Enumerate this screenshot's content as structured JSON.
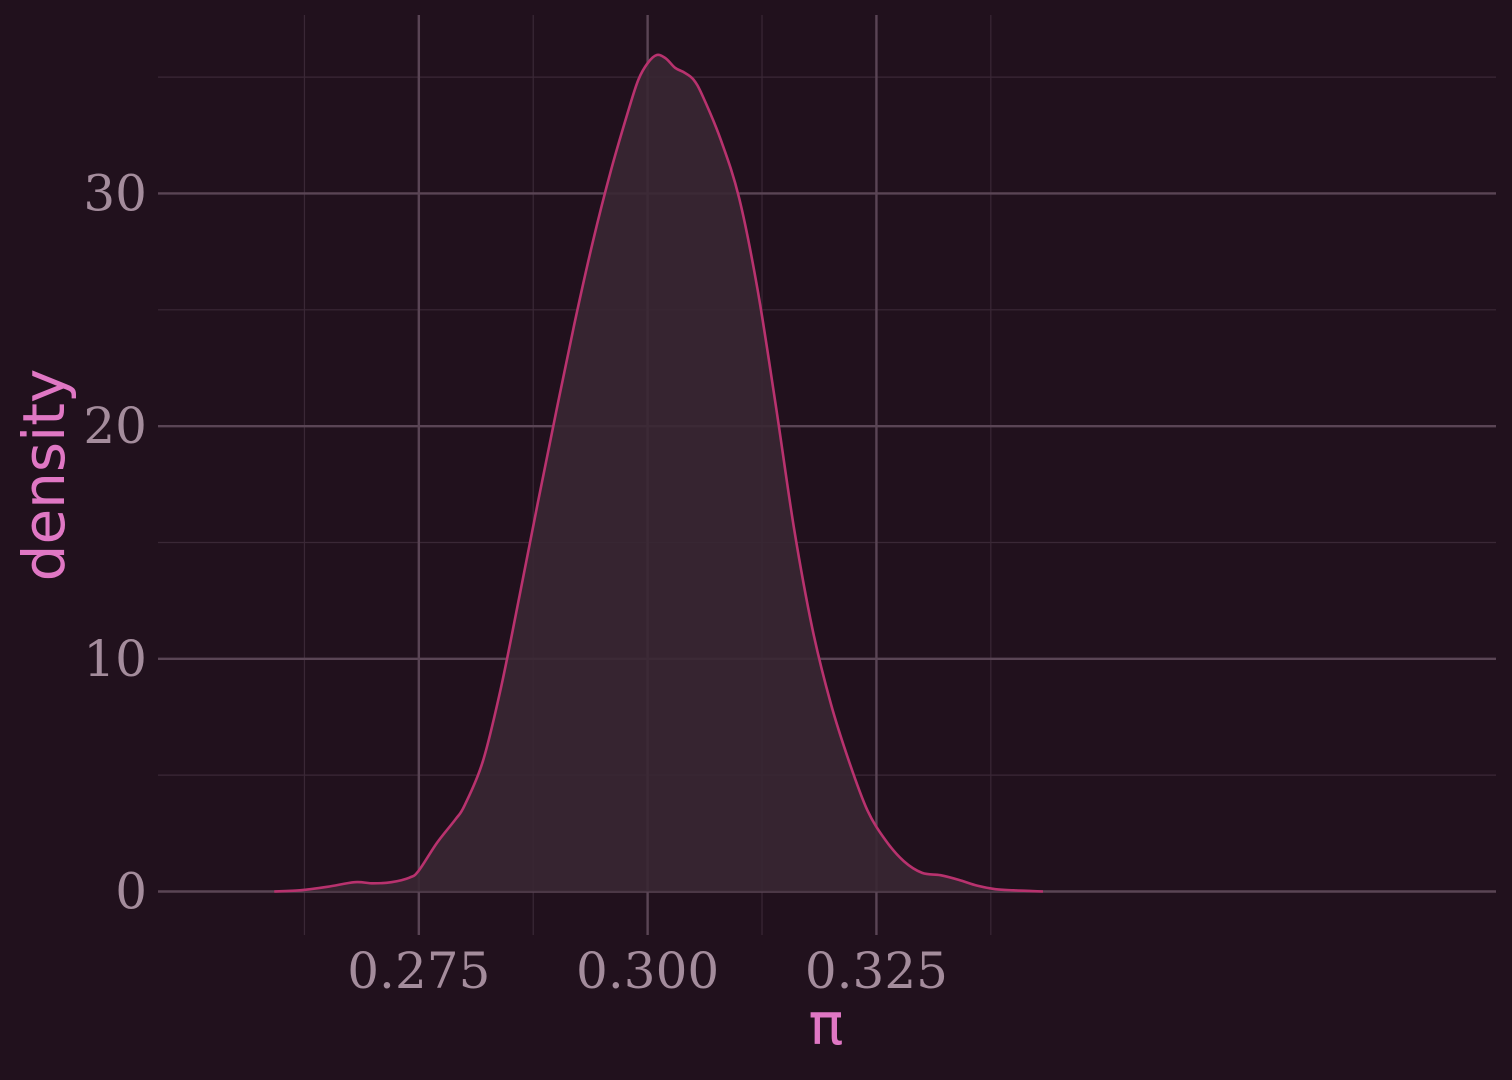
{
  "chart_data": {
    "type": "area",
    "title": "",
    "xlabel": "π",
    "ylabel": "density",
    "xlim": [
      0.2465,
      0.3927
    ],
    "ylim": [
      -1.87,
      37.67
    ],
    "x_ticks": [
      0.275,
      0.3,
      0.325
    ],
    "x_tick_labels": [
      "0.275",
      "0.300",
      "0.325"
    ],
    "y_ticks": [
      0,
      10,
      20,
      30
    ],
    "y_tick_labels": [
      "0",
      "10",
      "20",
      "30"
    ],
    "grid": true,
    "legend": "none",
    "colors": {
      "background": "#21111d",
      "panel": "#21111d",
      "line": "#b8326e",
      "fill": "#392733",
      "grid_major": "#5a4555",
      "grid_minor": "#3a2836",
      "tick_text": "#a48c9c",
      "axis_title": "#e077c4"
    },
    "series": [
      {
        "x": [
          0.2592,
          0.262,
          0.265,
          0.268,
          0.27,
          0.272,
          0.274,
          0.275,
          0.277,
          0.279,
          0.28,
          0.282,
          0.284,
          0.286,
          0.288,
          0.29,
          0.292,
          0.294,
          0.296,
          0.298,
          0.299,
          0.3,
          0.301,
          0.302,
          0.303,
          0.304,
          0.305,
          0.306,
          0.308,
          0.31,
          0.312,
          0.314,
          0.316,
          0.318,
          0.32,
          0.322,
          0.324,
          0.326,
          0.328,
          0.33,
          0.332,
          0.334,
          0.336,
          0.338,
          0.34,
          0.342,
          0.3432
        ],
        "y": [
          0.0,
          0.05,
          0.2,
          0.4,
          0.35,
          0.4,
          0.6,
          0.9,
          2.1,
          3.1,
          3.7,
          5.6,
          8.8,
          12.7,
          16.7,
          20.6,
          24.4,
          27.9,
          31.0,
          33.7,
          34.9,
          35.6,
          35.95,
          35.8,
          35.4,
          35.2,
          34.9,
          34.2,
          32.3,
          29.8,
          25.9,
          20.9,
          15.6,
          11.3,
          8.1,
          5.6,
          3.5,
          2.2,
          1.3,
          0.8,
          0.7,
          0.5,
          0.25,
          0.1,
          0.05,
          0.02,
          0.0
        ]
      }
    ]
  }
}
